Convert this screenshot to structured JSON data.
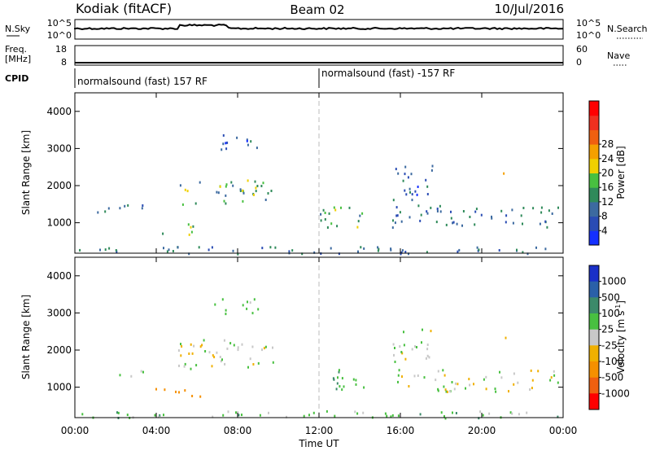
{
  "header": {
    "station": "Kodiak (fitACF)",
    "beam": "Beam 02",
    "date": "10/Jul/2016"
  },
  "strip_labels": {
    "nsky": "N.Sky",
    "nsky_ticks": [
      "10^5",
      "10^0"
    ],
    "nsearch": "N.Search",
    "nsearch_ticks": [
      "10^5",
      "10^0"
    ],
    "freq": "Freq.",
    "freq_unit": "[MHz]",
    "freq_ticks": [
      "18",
      "8"
    ],
    "nave": "Nave",
    "nave_ticks": [
      "60",
      "0"
    ],
    "cpid": "CPID"
  },
  "cpid_segments": [
    {
      "label": "normalsound (fast) 157 RF",
      "start_hour": 0,
      "end_hour": 12
    },
    {
      "label": "normalsound (fast) -157 RF",
      "start_hour": 12,
      "end_hour": 24
    }
  ],
  "chart_data": [
    {
      "type": "heatmap",
      "panel": "power",
      "ylabel": "Slant Range [km]",
      "colorbar_label": "Power [dB]",
      "colorbar_ticks": [
        "4",
        "8",
        "12",
        "16",
        "20",
        "24",
        "28"
      ],
      "colorbar_colors": [
        "#1430ff",
        "#2a4cb4",
        "#3c6aa0",
        "#2f8a5a",
        "#48c040",
        "#f0d000",
        "#f5a000",
        "#f06010",
        "#f03020",
        "#ff0000"
      ],
      "ylim": [
        180,
        4500
      ],
      "yticks": [
        "1000",
        "2000",
        "3000",
        "4000"
      ],
      "xlim": [
        0,
        24
      ],
      "echo_regions": [
        {
          "t0": 0.2,
          "t1": 3.5,
          "r0": 1300,
          "r1": 1500,
          "value": 8
        },
        {
          "t0": 3.8,
          "t1": 6.2,
          "r0": 700,
          "r1": 1000,
          "value": 14
        },
        {
          "t0": 5.0,
          "t1": 9.8,
          "r0": 1500,
          "r1": 2300,
          "value": 12
        },
        {
          "t0": 6.8,
          "t1": 9.0,
          "r0": 3000,
          "r1": 3400,
          "value": 6
        },
        {
          "t0": 12.0,
          "t1": 14.5,
          "r0": 900,
          "r1": 1500,
          "value": 12
        },
        {
          "t0": 15.5,
          "t1": 23.8,
          "r0": 900,
          "r1": 1500,
          "value": 8
        },
        {
          "t0": 15.6,
          "t1": 17.6,
          "r0": 1600,
          "r1": 2600,
          "value": 6
        },
        {
          "t0": 20.6,
          "t1": 21.2,
          "r0": 2200,
          "r1": 2400,
          "value": 16
        },
        {
          "t0": 0.0,
          "t1": 24.0,
          "r0": 180,
          "r1": 380,
          "value": 8
        }
      ]
    },
    {
      "type": "heatmap",
      "panel": "velocity",
      "ylabel": "Slant Range [km]",
      "colorbar_label": "Velocity [m s",
      "colorbar_label_sup": "-1",
      "colorbar_label_end": "]",
      "colorbar_ticks": [
        "1000",
        "500",
        "100",
        "25",
        "-25",
        "-100",
        "-500",
        "-1000"
      ],
      "colorbar_colors": [
        "#1a30c8",
        "#2a60a8",
        "#3c8a6a",
        "#48c040",
        "#c8c8c8",
        "#f0b000",
        "#f59000",
        "#f06010",
        "#ff0000"
      ],
      "ylim": [
        180,
        4500
      ],
      "yticks": [
        "1000",
        "2000",
        "3000",
        "4000"
      ],
      "xlim": [
        0,
        24
      ],
      "xticks": [
        "00:00",
        "04:00",
        "08:00",
        "12:00",
        "16:00",
        "20:00",
        "00:00"
      ],
      "xlabel": "Time UT",
      "echo_regions": [
        {
          "t0": 0.2,
          "t1": 3.5,
          "r0": 1300,
          "r1": 1500,
          "value": 0
        },
        {
          "t0": 3.8,
          "t1": 6.2,
          "r0": 700,
          "r1": 1000,
          "value": -200
        },
        {
          "t0": 5.0,
          "t1": 9.8,
          "r0": 1500,
          "r1": 2300,
          "value": 0
        },
        {
          "t0": 6.8,
          "t1": 9.0,
          "r0": 3000,
          "r1": 3400,
          "value": 50
        },
        {
          "t0": 12.0,
          "t1": 14.5,
          "r0": 900,
          "r1": 1500,
          "value": 100
        },
        {
          "t0": 15.5,
          "t1": 23.8,
          "r0": 900,
          "r1": 1500,
          "value": 0
        },
        {
          "t0": 15.6,
          "t1": 17.6,
          "r0": 1600,
          "r1": 2600,
          "value": 0
        },
        {
          "t0": 20.6,
          "t1": 21.2,
          "r0": 2200,
          "r1": 2400,
          "value": -50
        },
        {
          "t0": 0.0,
          "t1": 24.0,
          "r0": 180,
          "r1": 380,
          "value": 60
        }
      ]
    }
  ]
}
